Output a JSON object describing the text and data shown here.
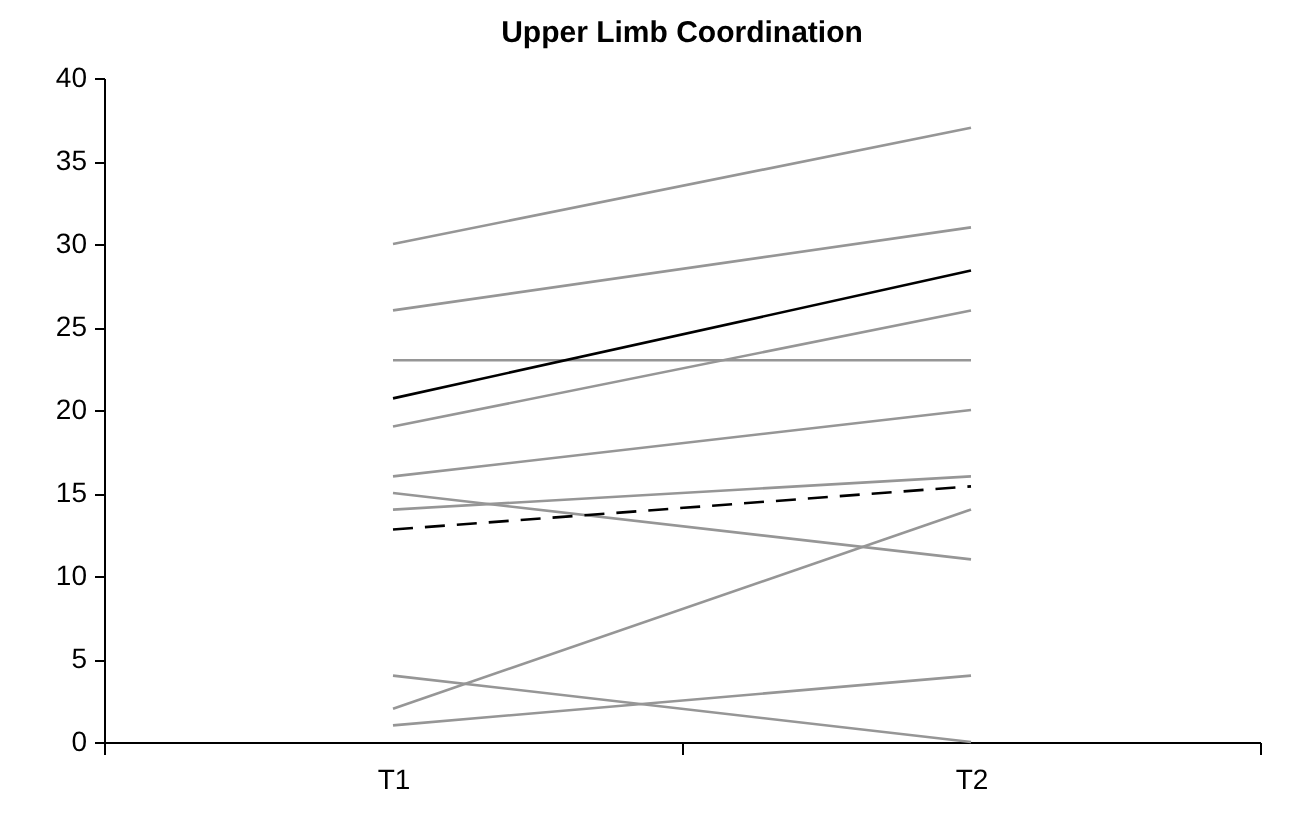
{
  "chart_data": {
    "type": "line",
    "title": "Upper Limb Coordination",
    "categories": [
      "T1",
      "T2"
    ],
    "series": [
      {
        "color": "#969696",
        "values": [
          30,
          37
        ]
      },
      {
        "color": "#969696",
        "values": [
          26,
          31
        ]
      },
      {
        "color": "#969696",
        "values": [
          23,
          23
        ]
      },
      {
        "color": "#969696",
        "values": [
          19,
          26
        ]
      },
      {
        "color": "#969696",
        "values": [
          16,
          20
        ]
      },
      {
        "color": "#969696",
        "values": [
          15,
          11
        ]
      },
      {
        "color": "#969696",
        "values": [
          14,
          16
        ]
      },
      {
        "color": "#969696",
        "values": [
          4,
          0
        ]
      },
      {
        "color": "#969696",
        "values": [
          2,
          14
        ]
      },
      {
        "color": "#969696",
        "values": [
          1,
          4
        ]
      },
      {
        "color": "#000000",
        "values": [
          20.7,
          28.4
        ]
      },
      {
        "color": "#000000",
        "values": [
          12.8,
          15.4
        ],
        "line_style": "dashed"
      }
    ],
    "ylim": [
      0,
      40
    ],
    "yticks": [
      0,
      5,
      10,
      15,
      20,
      25,
      30,
      35,
      40
    ],
    "grid": false,
    "legend": false,
    "marker": "none",
    "line_style": "solid"
  }
}
